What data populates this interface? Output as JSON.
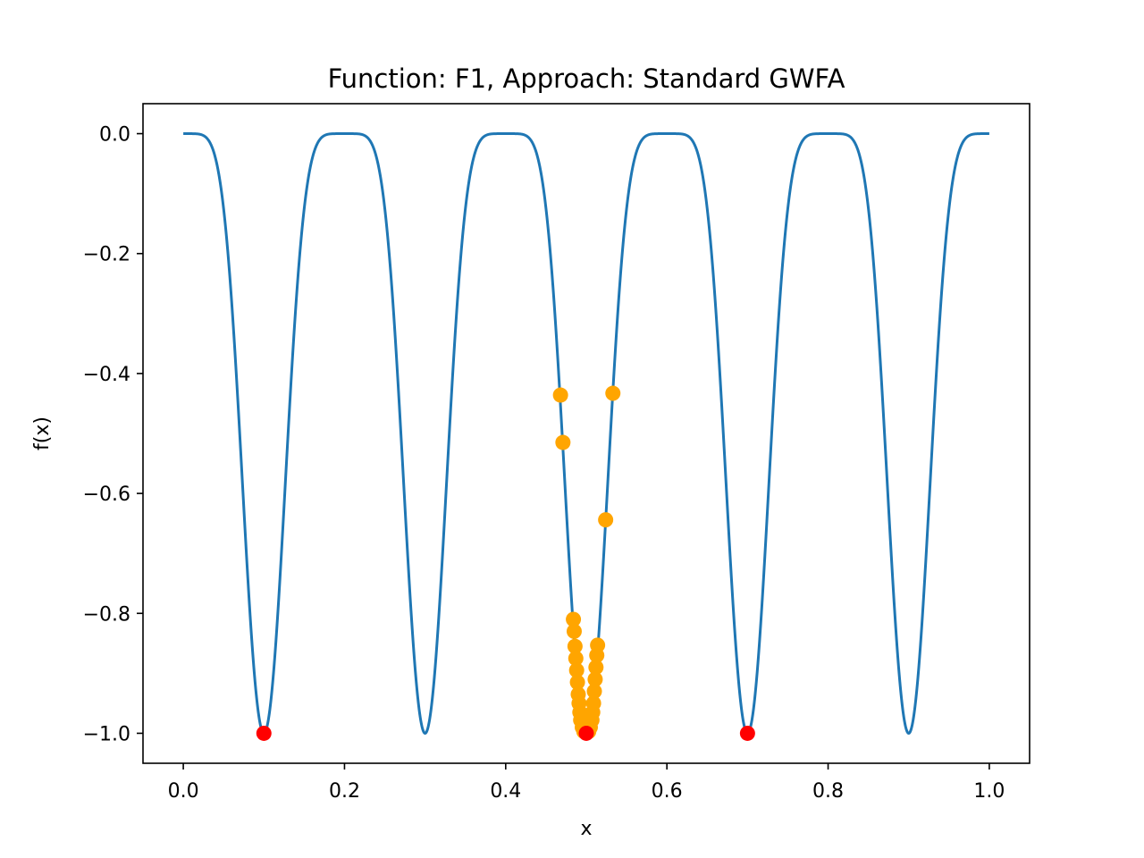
{
  "chart_data": {
    "type": "scatter",
    "title": "Function: F1, Approach: Standard GWFA",
    "xlabel": "x",
    "ylabel": "f(x)",
    "xlim": [
      -0.05,
      1.05
    ],
    "ylim": [
      -1.05,
      0.05
    ],
    "x_ticks": [
      0.0,
      0.2,
      0.4,
      0.6,
      0.8,
      1.0
    ],
    "x_tick_labels": [
      "0.0",
      "0.2",
      "0.4",
      "0.6",
      "0.8",
      "1.0"
    ],
    "y_ticks": [
      0.0,
      -0.2,
      -0.4,
      -0.6,
      -0.8,
      -1.0
    ],
    "y_tick_labels": [
      "0.0",
      "−0.2",
      "−0.4",
      "−0.6",
      "−0.8",
      "−1.0"
    ],
    "grid": false,
    "series": [
      {
        "kind": "line",
        "color": "#1f77b4",
        "function": "-sin(5*pi*x)^6",
        "x_range": [
          0.0,
          1.0
        ]
      },
      {
        "kind": "scatter",
        "color": "#ffa500",
        "points": [
          [
            0.468,
            -0.436
          ],
          [
            0.533,
            -0.433
          ],
          [
            0.471,
            -0.515
          ],
          [
            0.524,
            -0.644
          ],
          [
            0.484,
            -0.81
          ],
          [
            0.485,
            -0.83
          ],
          [
            0.486,
            -0.855
          ],
          [
            0.487,
            -0.875
          ],
          [
            0.488,
            -0.895
          ],
          [
            0.489,
            -0.915
          ],
          [
            0.49,
            -0.935
          ],
          [
            0.491,
            -0.95
          ],
          [
            0.492,
            -0.965
          ],
          [
            0.493,
            -0.978
          ],
          [
            0.495,
            -0.99
          ],
          [
            0.497,
            -0.997
          ],
          [
            0.503,
            -0.997
          ],
          [
            0.505,
            -0.99
          ],
          [
            0.507,
            -0.978
          ],
          [
            0.508,
            -0.965
          ],
          [
            0.509,
            -0.95
          ],
          [
            0.51,
            -0.93
          ],
          [
            0.511,
            -0.91
          ],
          [
            0.512,
            -0.89
          ],
          [
            0.513,
            -0.87
          ],
          [
            0.514,
            -0.853
          ]
        ]
      },
      {
        "kind": "scatter",
        "color": "#ff0000",
        "points": [
          [
            0.1,
            -1.0
          ],
          [
            0.5,
            -1.0
          ],
          [
            0.7,
            -1.0
          ]
        ]
      }
    ]
  }
}
